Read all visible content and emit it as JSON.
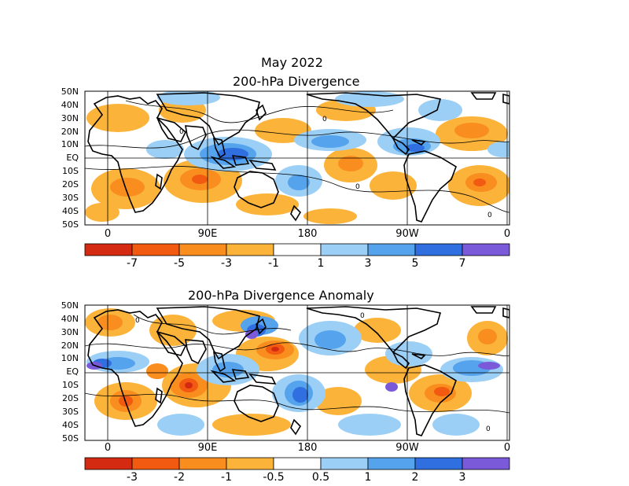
{
  "header": {
    "month_title": "May 2022",
    "panel1_title": "200-hPa Divergence",
    "panel2_title": "200-hPa Divergence Anomaly"
  },
  "lat_labels": [
    "50N",
    "40N",
    "30N",
    "20N",
    "10N",
    "EQ",
    "10S",
    "20S",
    "30S",
    "40S",
    "50S"
  ],
  "lon_labels": [
    "0",
    "90E",
    "180",
    "90W",
    "0"
  ],
  "colorbar1": {
    "labels": [
      "-7",
      "-5",
      "-3",
      "-1",
      "1",
      "3",
      "5",
      "7"
    ],
    "colors": [
      "#d42a12",
      "#f25a12",
      "#f98d1e",
      "#fcb33a",
      "#ffffff",
      "#9ccff6",
      "#55a3ec",
      "#2f6fe0",
      "#7a5ad8"
    ]
  },
  "colorbar2": {
    "labels": [
      "-3",
      "-2",
      "-1",
      "-0.5",
      "0.5",
      "1",
      "2",
      "3"
    ],
    "colors": [
      "#d42a12",
      "#f25a12",
      "#f98d1e",
      "#fcb33a",
      "#ffffff",
      "#9ccff6",
      "#55a3ec",
      "#2f6fe0",
      "#7a5ad8"
    ]
  },
  "contour_label": "0",
  "palette": {
    "land": "#000000",
    "positive": "#2f6fe0",
    "negative": "#f98d1e"
  }
}
